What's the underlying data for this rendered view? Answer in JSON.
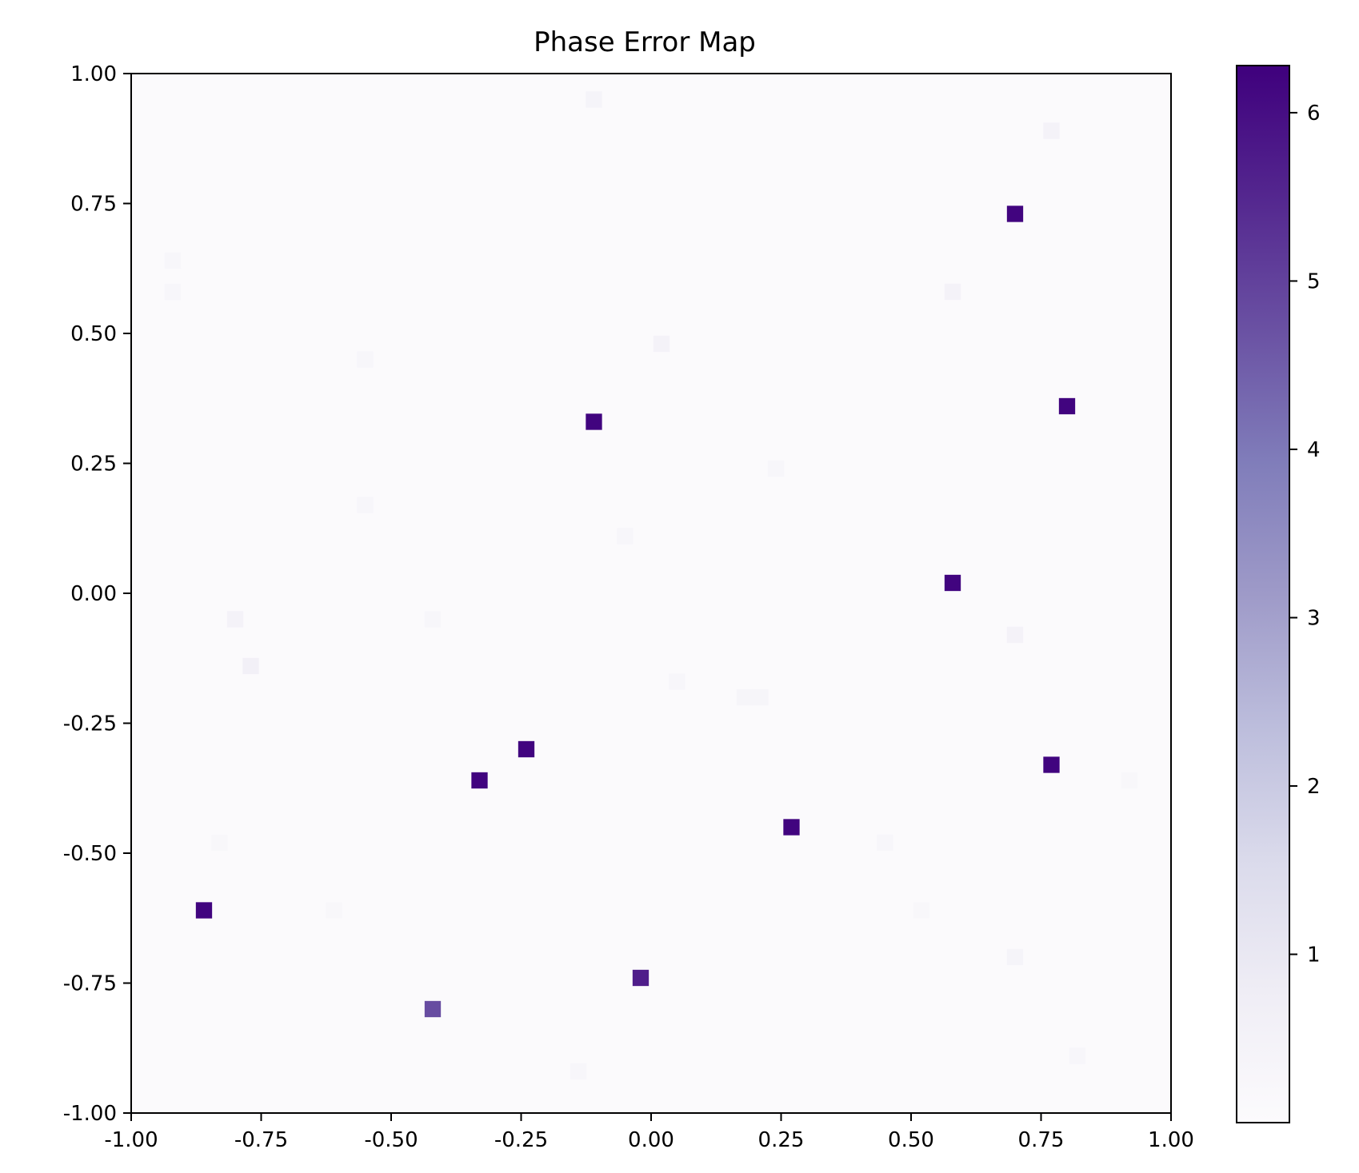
{
  "chart_data": {
    "type": "heatmap",
    "title": "Phase Error Map",
    "xlabel": "",
    "ylabel": "",
    "xlim": [
      -1.0,
      1.0
    ],
    "ylim": [
      -1.0,
      1.0
    ],
    "x_ticks": [
      "-1.00",
      "-0.75",
      "-0.50",
      "-0.25",
      "0.00",
      "0.25",
      "0.50",
      "0.75",
      "1.00"
    ],
    "y_ticks": [
      "1.00",
      "0.75",
      "0.50",
      "0.25",
      "0.00",
      "-0.25",
      "-0.50",
      "-0.75",
      "-1.00"
    ],
    "grid": false,
    "colormap": "Purples",
    "colorbar": {
      "min": 0.0,
      "max": 6.28,
      "ticks": [
        "1",
        "2",
        "3",
        "4",
        "5",
        "6"
      ],
      "colors": [
        "#fcfbfd",
        "#efedf5",
        "#dadaeb",
        "#bcbddc",
        "#9e9ac8",
        "#807dba",
        "#6a51a3",
        "#54278f",
        "#3f007d"
      ]
    },
    "grid_resolution": 64,
    "background_value": 0.05,
    "cells": [
      {
        "x": 0.7,
        "y": 0.73,
        "value": 6.2
      },
      {
        "x": 0.8,
        "y": 0.36,
        "value": 6.2
      },
      {
        "x": -0.11,
        "y": 0.33,
        "value": 6.2
      },
      {
        "x": 0.58,
        "y": 0.02,
        "value": 6.2
      },
      {
        "x": -0.24,
        "y": -0.3,
        "value": 6.2
      },
      {
        "x": 0.77,
        "y": -0.33,
        "value": 6.2
      },
      {
        "x": -0.33,
        "y": -0.36,
        "value": 6.2
      },
      {
        "x": 0.27,
        "y": -0.45,
        "value": 6.2
      },
      {
        "x": -0.86,
        "y": -0.61,
        "value": 6.2
      },
      {
        "x": -0.02,
        "y": -0.74,
        "value": 5.7
      },
      {
        "x": -0.42,
        "y": -0.8,
        "value": 4.8
      },
      {
        "x": 0.77,
        "y": 0.89,
        "value": 0.5
      },
      {
        "x": -0.11,
        "y": 0.95,
        "value": 0.4
      },
      {
        "x": 0.58,
        "y": 0.58,
        "value": 0.5
      },
      {
        "x": 0.02,
        "y": 0.48,
        "value": 0.5
      },
      {
        "x": -0.8,
        "y": -0.05,
        "value": 0.5
      },
      {
        "x": -0.77,
        "y": -0.14,
        "value": 0.6
      },
      {
        "x": 0.7,
        "y": -0.08,
        "value": 0.5
      },
      {
        "x": 0.7,
        "y": -0.7,
        "value": 0.4
      },
      {
        "x": 0.18,
        "y": -0.2,
        "value": 0.35
      },
      {
        "x": 0.21,
        "y": -0.2,
        "value": 0.35
      },
      {
        "x": -0.55,
        "y": 0.17,
        "value": 0.3
      },
      {
        "x": -0.55,
        "y": 0.45,
        "value": 0.3
      },
      {
        "x": 0.24,
        "y": 0.24,
        "value": 0.3
      },
      {
        "x": -0.05,
        "y": 0.11,
        "value": 0.3
      },
      {
        "x": -0.92,
        "y": 0.58,
        "value": 0.3
      },
      {
        "x": -0.92,
        "y": 0.64,
        "value": 0.3
      },
      {
        "x": -0.14,
        "y": -0.92,
        "value": 0.3
      },
      {
        "x": 0.82,
        "y": -0.89,
        "value": 0.3
      },
      {
        "x": -0.42,
        "y": -0.05,
        "value": 0.3
      },
      {
        "x": 0.45,
        "y": -0.48,
        "value": 0.3
      },
      {
        "x": 0.05,
        "y": -0.17,
        "value": 0.3
      },
      {
        "x": 0.52,
        "y": -0.61,
        "value": 0.25
      },
      {
        "x": 0.92,
        "y": -0.36,
        "value": 0.25
      },
      {
        "x": -0.61,
        "y": -0.61,
        "value": 0.25
      },
      {
        "x": -0.83,
        "y": -0.48,
        "value": 0.25
      }
    ]
  }
}
